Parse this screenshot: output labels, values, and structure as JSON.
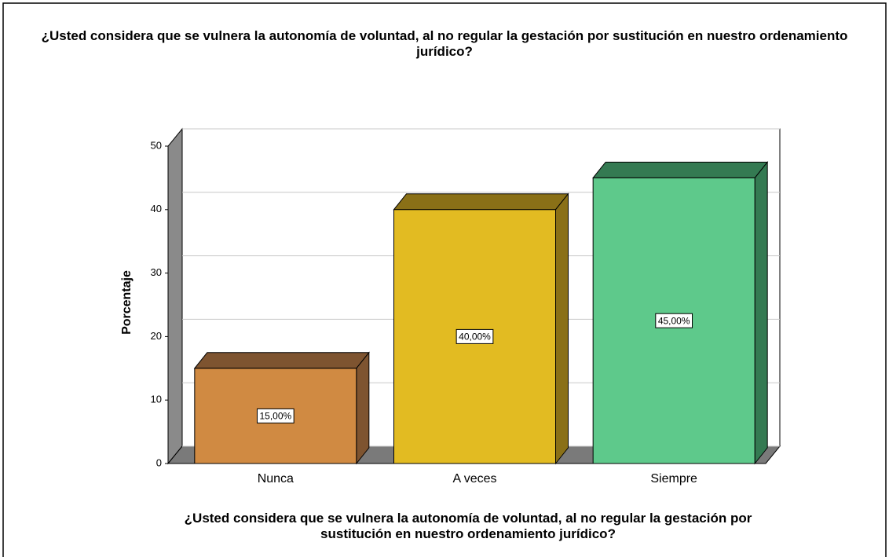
{
  "chart_data": {
    "type": "bar3d",
    "title": "¿Usted considera que se vulnera la autonomía de voluntad, al no regular la gestación por sustitución en nuestro ordenamiento jurídico?",
    "xlabel": "¿Usted considera que se vulnera la autonomía de voluntad, al no regular la gestación por sustitución en nuestro ordenamiento jurídico?",
    "ylabel": "Porcentaje",
    "categories": [
      "Nunca",
      "A veces",
      "Siempre"
    ],
    "values": [
      15,
      40,
      45
    ],
    "value_labels": [
      "15,00%",
      "40,00%",
      "45,00%"
    ],
    "colors": [
      "#d08a42",
      "#e2bb22",
      "#5ec98b"
    ],
    "side_colors": [
      "#7e5430",
      "#8a7017",
      "#347a52"
    ],
    "ylim": [
      0,
      50
    ],
    "yticks": [
      0,
      10,
      20,
      30,
      40,
      50
    ],
    "grid": true
  }
}
